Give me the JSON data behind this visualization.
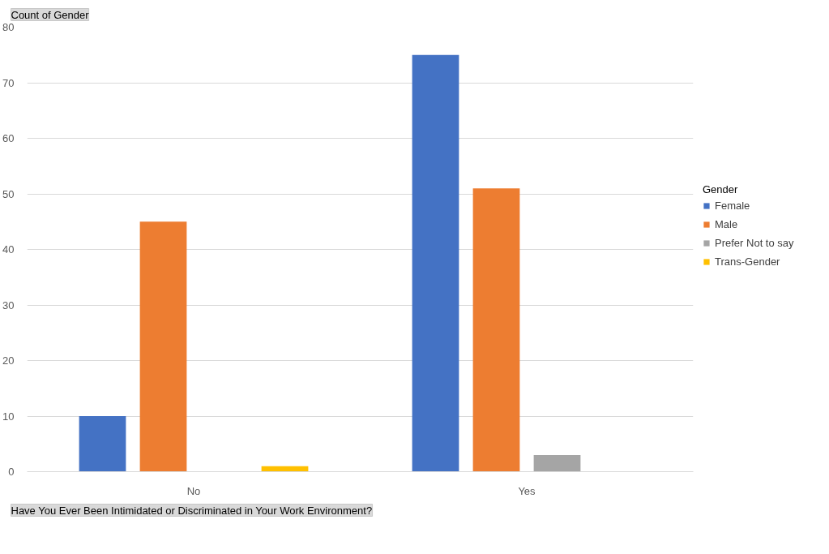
{
  "chart_data": {
    "type": "bar",
    "ylabel": "Count of Gender",
    "xlabel": "Have You Ever Been Intimidated or Discriminated in Your Work Environment?",
    "legend_title": "Gender",
    "categories": [
      "No",
      "Yes"
    ],
    "series": [
      {
        "name": "Female",
        "color": "#4472c4",
        "values": [
          10,
          75
        ]
      },
      {
        "name": "Male",
        "color": "#ed7d31",
        "values": [
          45,
          51
        ]
      },
      {
        "name": "Prefer Not to say",
        "color": "#a5a5a5",
        "values": [
          null,
          3
        ]
      },
      {
        "name": "Trans-Gender",
        "color": "#ffc000",
        "values": [
          1,
          null
        ]
      }
    ],
    "ylim": [
      0,
      80
    ],
    "yticks": [
      0,
      10,
      20,
      30,
      40,
      50,
      60,
      70,
      80
    ],
    "grid": "y",
    "legend": "right"
  }
}
